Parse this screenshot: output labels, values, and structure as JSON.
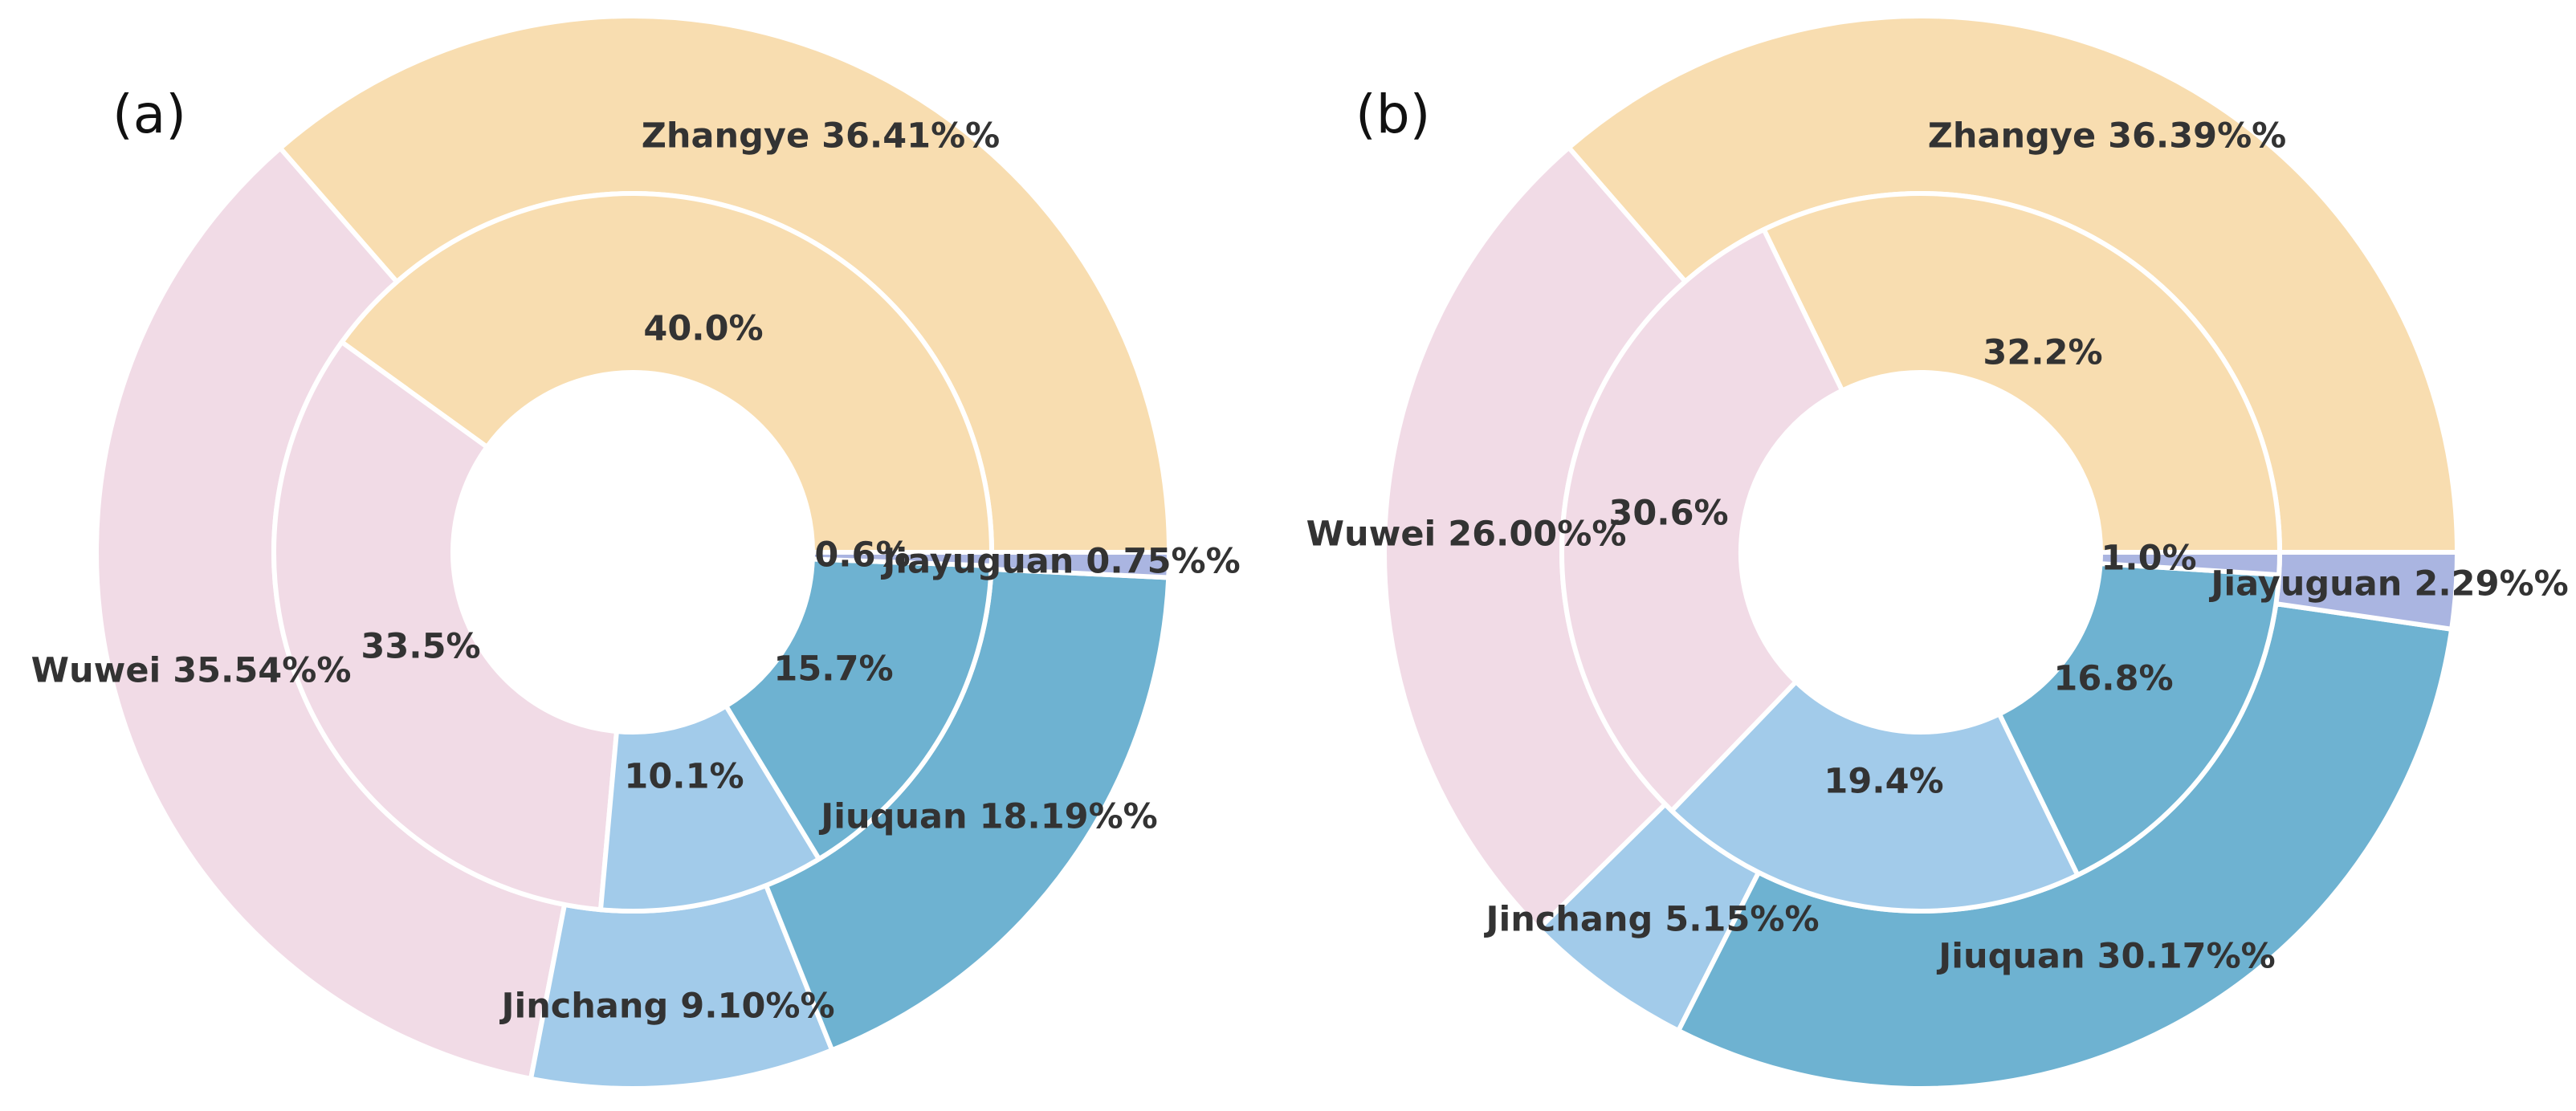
{
  "chart_data": [
    {
      "type": "pie",
      "subtype": "nested-donut",
      "panel_label": "(a)",
      "outer": [
        {
          "name": "Zhangye",
          "value": 36.41,
          "label": "Zhangye 36.41%%",
          "color": "#f8ddb0"
        },
        {
          "name": "Wuwei",
          "value": 35.54,
          "label": "Wuwei 35.54%%",
          "color": "#f1dbe6"
        },
        {
          "name": "Jinchang",
          "value": 9.1,
          "label": "Jinchang 9.10%%",
          "color": "#a2cbea"
        },
        {
          "name": "Jiuquan",
          "value": 18.19,
          "label": "Jiuquan 18.19%%",
          "color": "#6eb2d1"
        },
        {
          "name": "Jiayuguan",
          "value": 0.75,
          "label": "Jiayuguan 0.75%%",
          "color": "#aab5e1"
        }
      ],
      "inner": [
        {
          "name": "Zhangye",
          "value": 40.0,
          "label": "40.0%",
          "color": "#f8ddb0"
        },
        {
          "name": "Wuwei",
          "value": 33.5,
          "label": "33.5%",
          "color": "#f1dbe6"
        },
        {
          "name": "Jinchang",
          "value": 10.1,
          "label": "10.1%",
          "color": "#a2cbea"
        },
        {
          "name": "Jiuquan",
          "value": 15.7,
          "label": "15.7%",
          "color": "#6eb2d1"
        },
        {
          "name": "Jiayuguan",
          "value": 0.6,
          "label": "0.6%",
          "color": "#aab5e1"
        }
      ]
    },
    {
      "type": "pie",
      "subtype": "nested-donut",
      "panel_label": "(b)",
      "outer": [
        {
          "name": "Zhangye",
          "value": 36.39,
          "label": "Zhangye 36.39%%",
          "color": "#f8ddb0"
        },
        {
          "name": "Wuwei",
          "value": 26.0,
          "label": "Wuwei 26.00%%",
          "color": "#f1dbe6"
        },
        {
          "name": "Jinchang",
          "value": 5.15,
          "label": "Jinchang 5.15%%",
          "color": "#a2cbea"
        },
        {
          "name": "Jiuquan",
          "value": 30.17,
          "label": "Jiuquan 30.17%%",
          "color": "#6eb2d1"
        },
        {
          "name": "Jiayuguan",
          "value": 2.29,
          "label": "Jiayuguan 2.29%%",
          "color": "#aab5e1"
        }
      ],
      "inner": [
        {
          "name": "Zhangye",
          "value": 32.2,
          "label": "32.2%",
          "color": "#f8ddb0"
        },
        {
          "name": "Wuwei",
          "value": 30.6,
          "label": "30.6%",
          "color": "#f1dbe6"
        },
        {
          "name": "Jinchang",
          "value": 19.4,
          "label": "19.4%",
          "color": "#a2cbea"
        },
        {
          "name": "Jiuquan",
          "value": 16.8,
          "label": "16.8%",
          "color": "#6eb2d1"
        },
        {
          "name": "Jiayuguan",
          "value": 1.0,
          "label": "1.0%",
          "color": "#aab5e1"
        }
      ]
    }
  ]
}
